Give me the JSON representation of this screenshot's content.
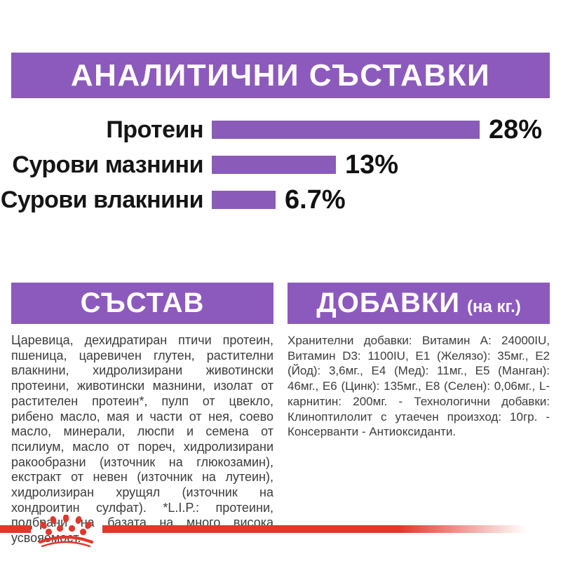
{
  "title_banner": {
    "text": "АНАЛИТИЧНИ СЪСТАВКИ"
  },
  "chart_data": {
    "type": "bar",
    "orientation": "horizontal",
    "categories": [
      "Протеин",
      "Сурови мазнини",
      "Сурови влакнини"
    ],
    "values": [
      28,
      13,
      6.7
    ],
    "value_labels": [
      "28%",
      "13%",
      "6.7%"
    ],
    "unit": "%",
    "max_value": 28,
    "bar_color": "#8B5BB9",
    "grid": "off",
    "legend": "none"
  },
  "sections": {
    "composition": {
      "header": "СЪСТАВ",
      "body": "Царевица, дехидратиран птичи протеин, пшеница, царевичен глутен, растителни влакнини, хидролизирани животински протеини, животински мазнини, изолат от растителен протеин*, пулп от цвекло, рибено масло, мая и части от нея, соево масло, минерали, люспи и семена от псилиум, масло от пореч, хидролизирани ракообразни (източник на глюкозамин), екстракт от невен (източник на лутеин), хидролизиран хрущял (източник на хондроитин сулфат). *L.I.P.: протеини, подбрани на базата на много висока усвояемост."
    },
    "additives": {
      "header": "ДОБАВКИ",
      "header_suffix": "(на кг.)",
      "body": "Хранителни добавки: Витамин A: 24000IU, Витамин D3: 1100IU, E1 (Желязо): 35мг., E2 (Йод): 3,6мг., E4 (Мед): 11мг., E5 (Манган): 46мг., E6 (Цинк): 135мг., E8 (Селен): 0,06мг., L-карнитин: 200мг. - Технологични добавки: Клиноптилолит с утаечен произход: 10гр. - Консерванти - Антиоксиданти."
    }
  },
  "footer": {
    "logo_icon": "royal-canin-crown-icon"
  },
  "colors": {
    "purple_banner": "#8C59BD",
    "purple_bar": "#8B5BB9",
    "brand_red": "#E0382A",
    "body_text": "#3C3C3C",
    "background": "#FFFFFF"
  }
}
